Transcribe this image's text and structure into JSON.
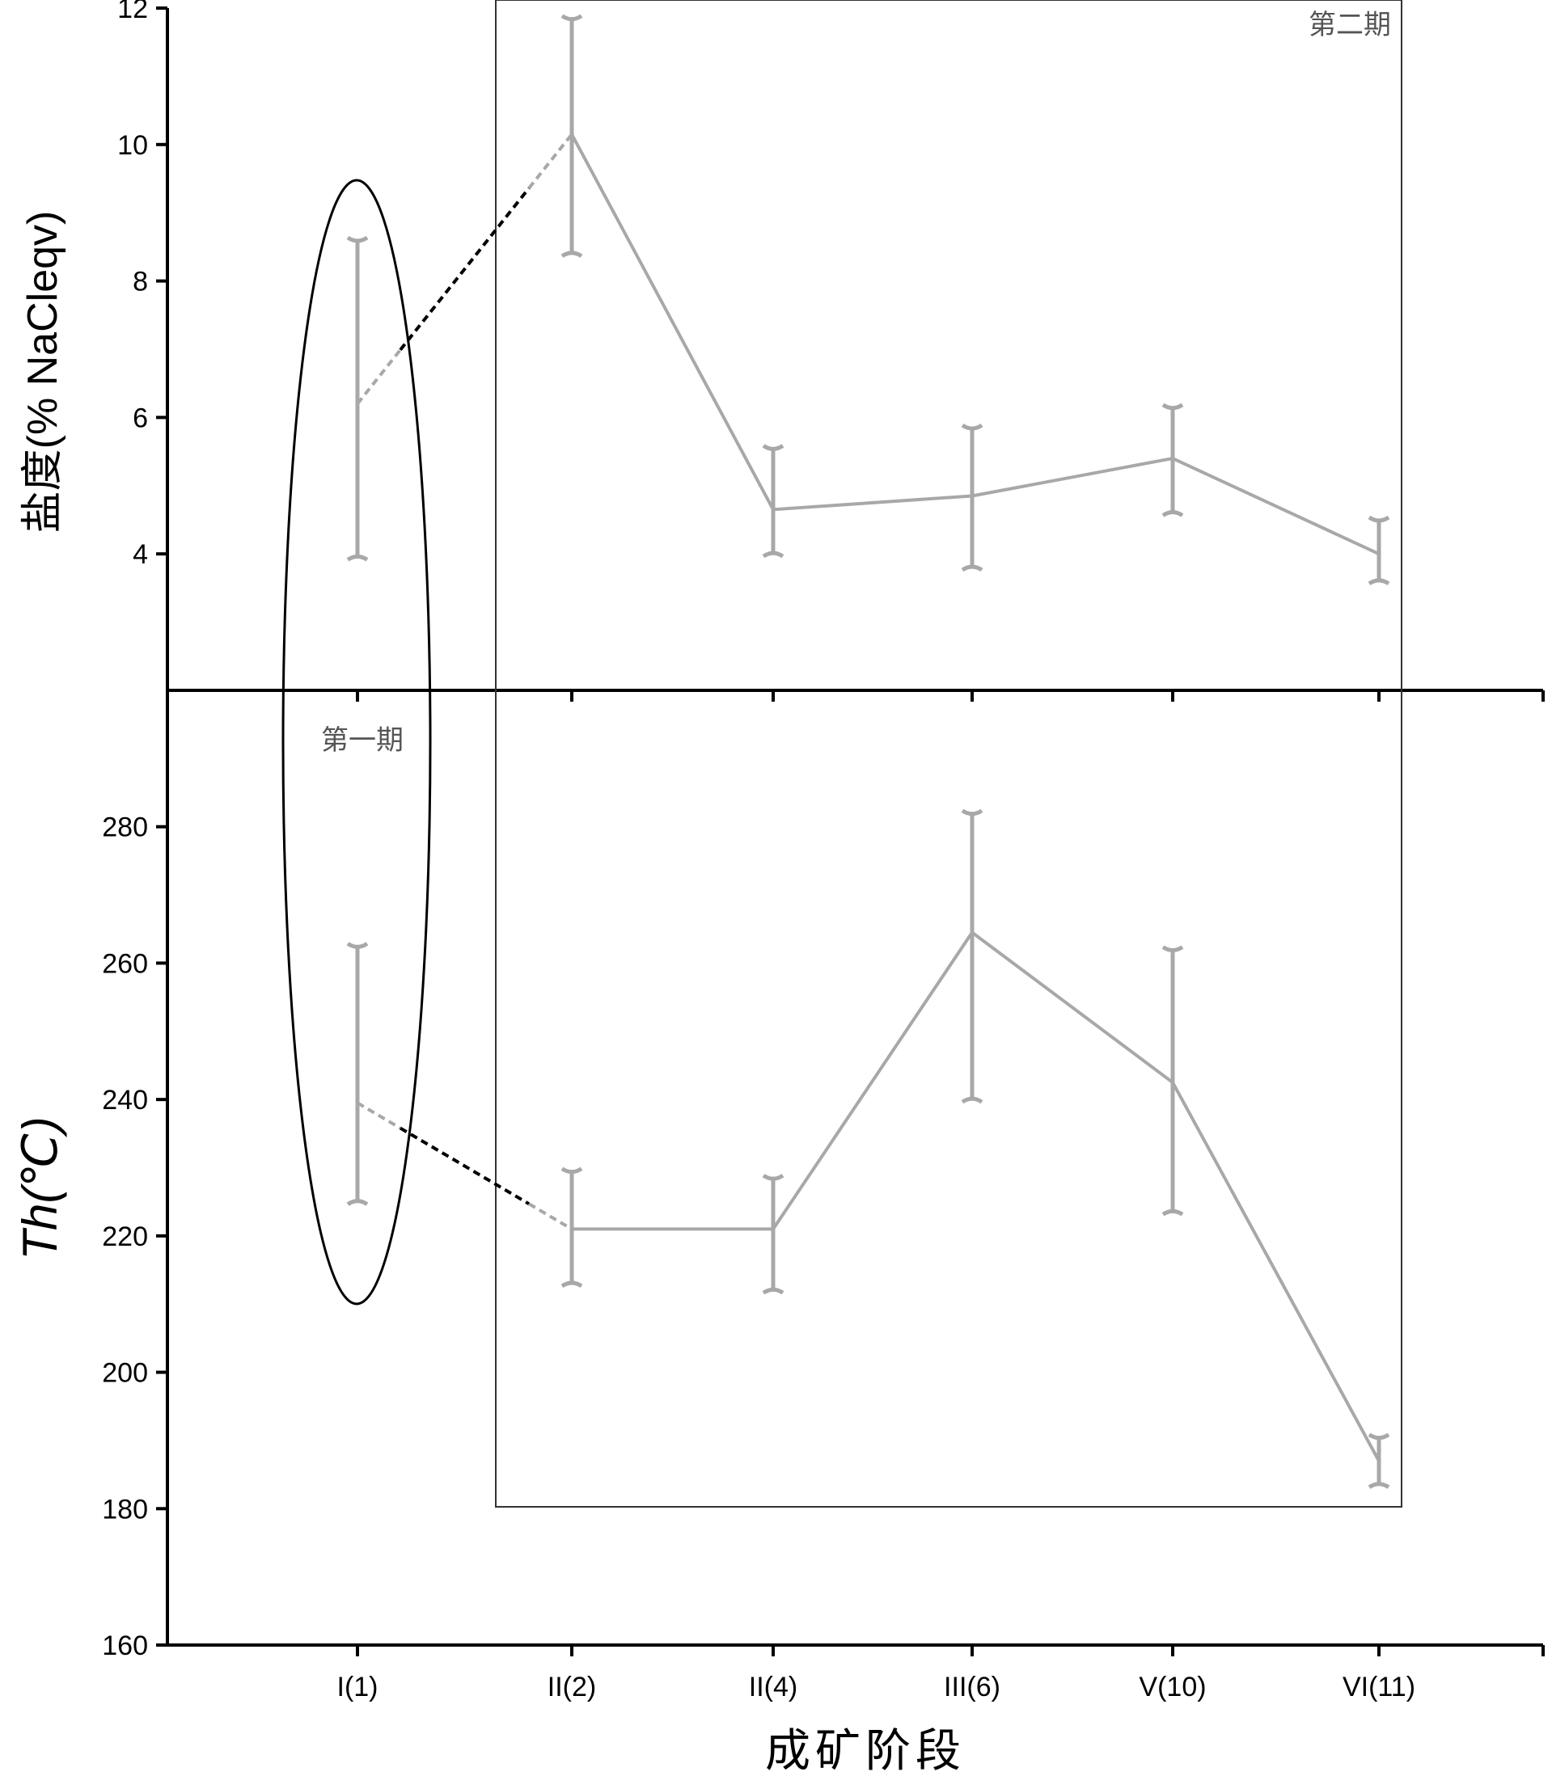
{
  "chart_data": {
    "type": "line",
    "categories": [
      "I(1)",
      "II(2)",
      "II(4)",
      "III(6)",
      "V(10)",
      "VI(11)"
    ],
    "xlabel": "成矿阶段",
    "panels": [
      {
        "id": "salinity",
        "ylabel": "盐度(% NaCleqv)",
        "ylim": [
          2,
          12
        ],
        "yticks": [
          4,
          6,
          8,
          10,
          12
        ],
        "series": [
          {
            "mean": [
              6.2,
              10.15,
              4.65,
              4.85,
              5.4,
              4.0
            ],
            "lower": [
              3.95,
              8.4,
              4.0,
              3.8,
              4.6,
              3.6
            ],
            "upper": [
              8.6,
              11.85,
              5.55,
              5.85,
              6.15,
              4.5
            ]
          }
        ]
      },
      {
        "id": "temperature",
        "ylabel": "Th(℃)",
        "ylim": [
          160,
          300
        ],
        "yticks": [
          160,
          180,
          200,
          220,
          240,
          260,
          280
        ],
        "series": [
          {
            "mean": [
              239.5,
              221.0,
              221.0,
              264.5,
              242.5,
              187.0
            ],
            "lower": [
              225.0,
              213.0,
              212.0,
              240.0,
              223.5,
              183.5
            ],
            "upper": [
              262.5,
              229.5,
              228.5,
              282.0,
              262.0,
              190.5
            ]
          }
        ]
      }
    ],
    "grid": false,
    "annotations": {
      "period1": "第一期",
      "period2": "第二期"
    }
  }
}
